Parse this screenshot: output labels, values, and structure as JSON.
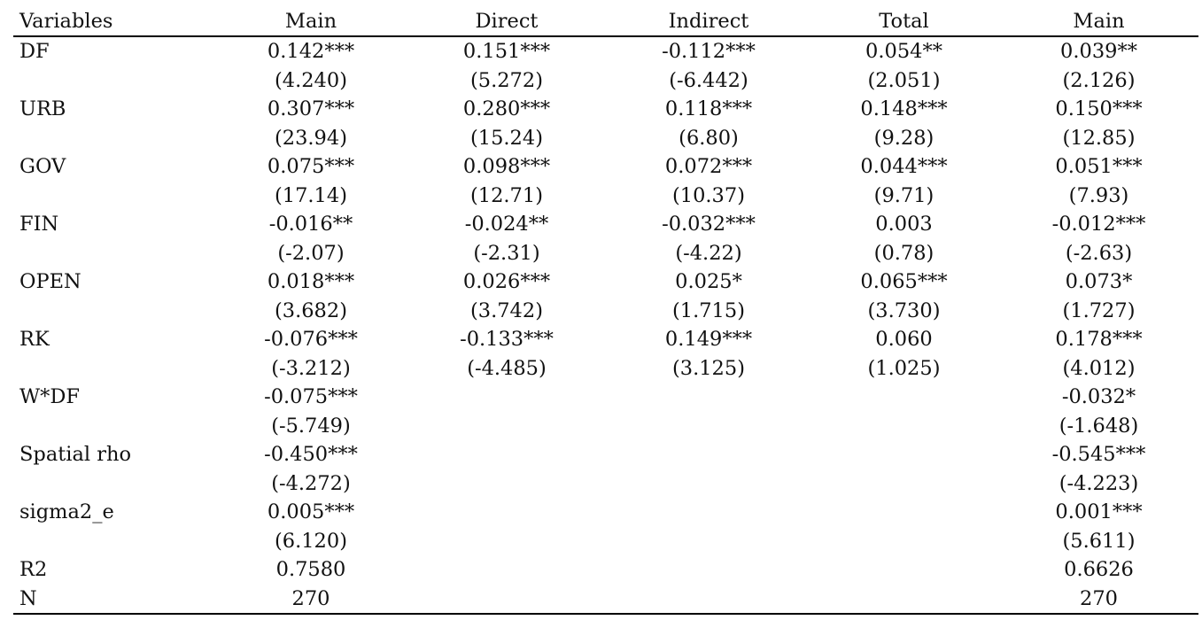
{
  "table": {
    "headers": [
      "Variables",
      "Main",
      "Direct",
      "Indirect",
      "Total",
      "Main"
    ],
    "rows": [
      [
        "DF",
        "0.142***",
        "0.151***",
        "-0.112***",
        "0.054**",
        "0.039**"
      ],
      [
        "",
        "(4.240)",
        "(5.272)",
        "(-6.442)",
        "(2.051)",
        "(2.126)"
      ],
      [
        "URB",
        "0.307***",
        "0.280***",
        "0.118***",
        "0.148***",
        "0.150***"
      ],
      [
        "",
        "(23.94)",
        "(15.24)",
        "(6.80)",
        "(9.28)",
        "(12.85)"
      ],
      [
        "GOV",
        "0.075***",
        "0.098***",
        "0.072***",
        "0.044***",
        "0.051***"
      ],
      [
        "",
        "(17.14)",
        "(12.71)",
        "(10.37)",
        "(9.71)",
        "(7.93)"
      ],
      [
        "FIN",
        "-0.016**",
        "-0.024**",
        "-0.032***",
        "0.003",
        "-0.012***"
      ],
      [
        "",
        "(-2.07)",
        "(-2.31)",
        "(-4.22)",
        "(0.78)",
        "(-2.63)"
      ],
      [
        "OPEN",
        "0.018***",
        "0.026***",
        "0.025*",
        "0.065***",
        "0.073*"
      ],
      [
        "",
        "(3.682)",
        "(3.742)",
        "(1.715)",
        "(3.730)",
        "(1.727)"
      ],
      [
        "RK",
        "-0.076***",
        "-0.133***",
        "0.149***",
        "0.060",
        "0.178***"
      ],
      [
        "",
        "(-3.212)",
        "(-4.485)",
        "(3.125)",
        "(1.025)",
        "(4.012)"
      ],
      [
        "W*DF",
        "-0.075***",
        "",
        "",
        "",
        "-0.032*"
      ],
      [
        "",
        "(-5.749)",
        "",
        "",
        "",
        "(-1.648)"
      ],
      [
        "Spatial rho",
        "-0.450***",
        "",
        "",
        "",
        "-0.545***"
      ],
      [
        "",
        "(-4.272)",
        "",
        "",
        "",
        "(-4.223)"
      ],
      [
        "sigma2_e",
        "0.005***",
        "",
        "",
        "",
        "0.001***"
      ],
      [
        "",
        "(6.120)",
        "",
        "",
        "",
        "(5.611)"
      ],
      [
        "R2",
        "0.7580",
        "",
        "",
        "",
        "0.6626"
      ],
      [
        "N",
        "270",
        "",
        "",
        "",
        "270"
      ]
    ]
  }
}
